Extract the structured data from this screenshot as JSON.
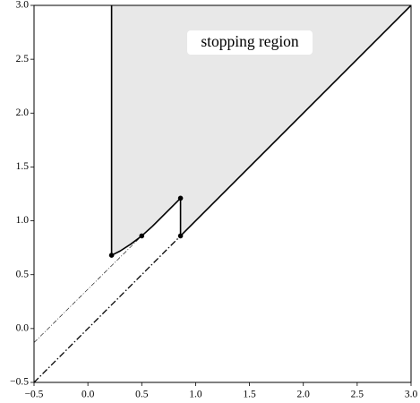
{
  "chart_data": {
    "type": "line",
    "xlim": [
      -0.5,
      3.0
    ],
    "ylim": [
      -0.5,
      3.0
    ],
    "xticks": [
      {
        "value": -0.5,
        "label": "−0.5"
      },
      {
        "value": 0,
        "label": "0.0"
      },
      {
        "value": 0.5,
        "label": "0.5"
      },
      {
        "value": 1,
        "label": "1.0"
      },
      {
        "value": 1.5,
        "label": "1.5"
      },
      {
        "value": 2,
        "label": "2.0"
      },
      {
        "value": 2.5,
        "label": "2.5"
      },
      {
        "value": 3,
        "label": "3.0"
      }
    ],
    "yticks": [
      {
        "value": -0.5,
        "label": "−0.5"
      },
      {
        "value": 0,
        "label": "0.0"
      },
      {
        "value": 0.5,
        "label": "0.5"
      },
      {
        "value": 1,
        "label": "1.0"
      },
      {
        "value": 1.5,
        "label": "1.5"
      },
      {
        "value": 2,
        "label": "2.0"
      },
      {
        "value": 2.5,
        "label": "2.5"
      },
      {
        "value": 3,
        "label": "3.0"
      }
    ],
    "annotation": "stopping region",
    "series": [
      {
        "color": "#000000",
        "fill": "#e8e8e8",
        "style": "solid",
        "x": [
          0.22,
          0.22,
          0.3,
          0.4,
          0.5,
          0.6,
          0.7,
          0.8,
          0.86,
          0.86,
          3.0
        ],
        "values": [
          3.0,
          0.68,
          0.72,
          0.785,
          0.86,
          0.95,
          1.05,
          1.15,
          1.21,
          0.86,
          3.0
        ]
      },
      {
        "color": "#000000",
        "style": "dashdot",
        "x": [
          -0.5,
          0.86
        ],
        "values": [
          -0.5,
          0.86
        ]
      },
      {
        "color": "#000000",
        "style": "dashdot-thin",
        "x": [
          -0.5,
          0.5
        ],
        "values": [
          -0.13,
          0.86
        ]
      },
      {
        "color": "#000000",
        "style": "markers",
        "x": [
          0.22,
          0.5,
          0.86,
          0.86
        ],
        "values": [
          0.68,
          0.86,
          1.21,
          0.86
        ]
      }
    ]
  }
}
